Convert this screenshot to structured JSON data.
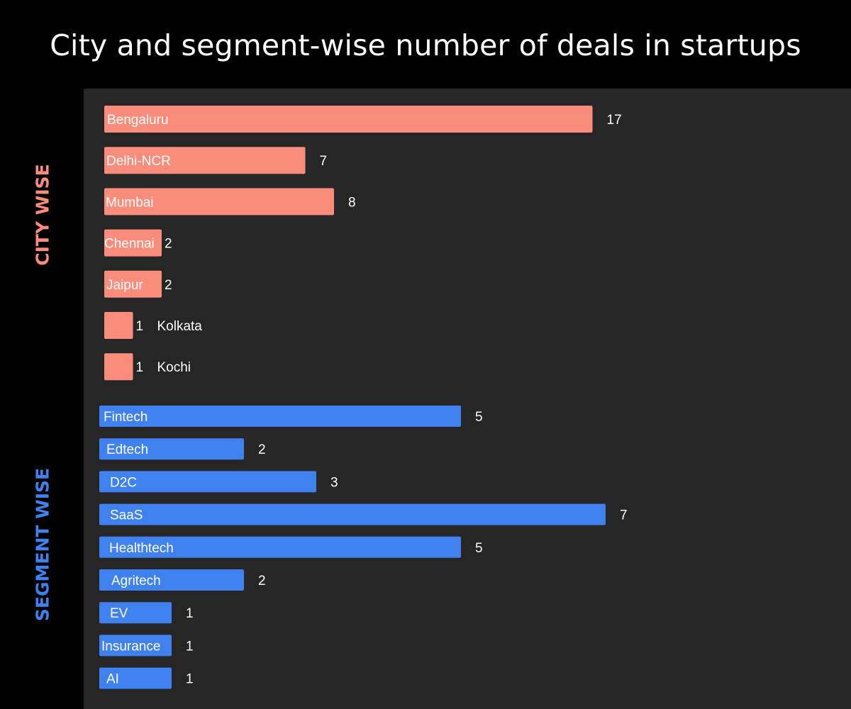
{
  "title": "City and segment-wise number of deals in startups",
  "colors": {
    "background": "#000000",
    "panel": "#262626",
    "city": "#fa8c7c",
    "segment": "#3f82ef",
    "text": "#ffffff"
  },
  "chart_data": [
    {
      "type": "bar",
      "orientation": "horizontal",
      "group_label": "CITY WISE",
      "categories": [
        "Bengaluru",
        "Delhi-NCR",
        "Mumbai",
        "Chennai",
        "Jaipur",
        "Kolkata",
        "Kochi"
      ],
      "values": [
        17,
        7,
        8,
        2,
        2,
        1,
        1
      ]
    },
    {
      "type": "bar",
      "orientation": "horizontal",
      "group_label": "SEGMENT WISE",
      "categories": [
        "Fintech",
        "Edtech",
        "D2C",
        "SaaS",
        "Healthtech",
        "Agritech",
        "EV",
        "Insurance",
        "AI"
      ],
      "values": [
        5,
        2,
        3,
        7,
        5,
        2,
        1,
        1,
        1
      ]
    }
  ]
}
